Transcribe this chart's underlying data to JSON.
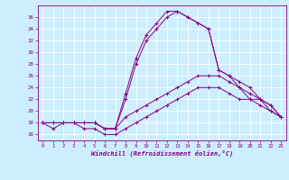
{
  "xlabel": "Windchill (Refroidissement éolien,°C)",
  "bg_color": "#cceeff",
  "line_color": "#880088",
  "grid_color": "#ffffff",
  "xlim": [
    -0.5,
    23.5
  ],
  "ylim": [
    15,
    38
  ],
  "yticks": [
    16,
    18,
    20,
    22,
    24,
    26,
    28,
    30,
    32,
    34,
    36
  ],
  "xticks": [
    0,
    1,
    2,
    3,
    4,
    5,
    6,
    7,
    8,
    9,
    10,
    11,
    12,
    13,
    14,
    15,
    16,
    17,
    18,
    19,
    20,
    21,
    22,
    23
  ],
  "series": [
    [
      18,
      17,
      18,
      18,
      17,
      17,
      16,
      16,
      17,
      18,
      19,
      20,
      21,
      22,
      23,
      24,
      24,
      24,
      23,
      22,
      22,
      21,
      20,
      19
    ],
    [
      18,
      18,
      18,
      18,
      18,
      18,
      17,
      17,
      19,
      20,
      21,
      22,
      23,
      24,
      25,
      26,
      26,
      26,
      25,
      24,
      22,
      22,
      21,
      19
    ],
    [
      18,
      18,
      18,
      18,
      18,
      18,
      17,
      17,
      22,
      28,
      32,
      34,
      36,
      37,
      36,
      35,
      34,
      27,
      26,
      24,
      23,
      22,
      20,
      19
    ],
    [
      18,
      18,
      18,
      18,
      18,
      18,
      17,
      17,
      23,
      29,
      33,
      35,
      37,
      37,
      36,
      35,
      34,
      27,
      26,
      25,
      24,
      22,
      21,
      19
    ]
  ]
}
